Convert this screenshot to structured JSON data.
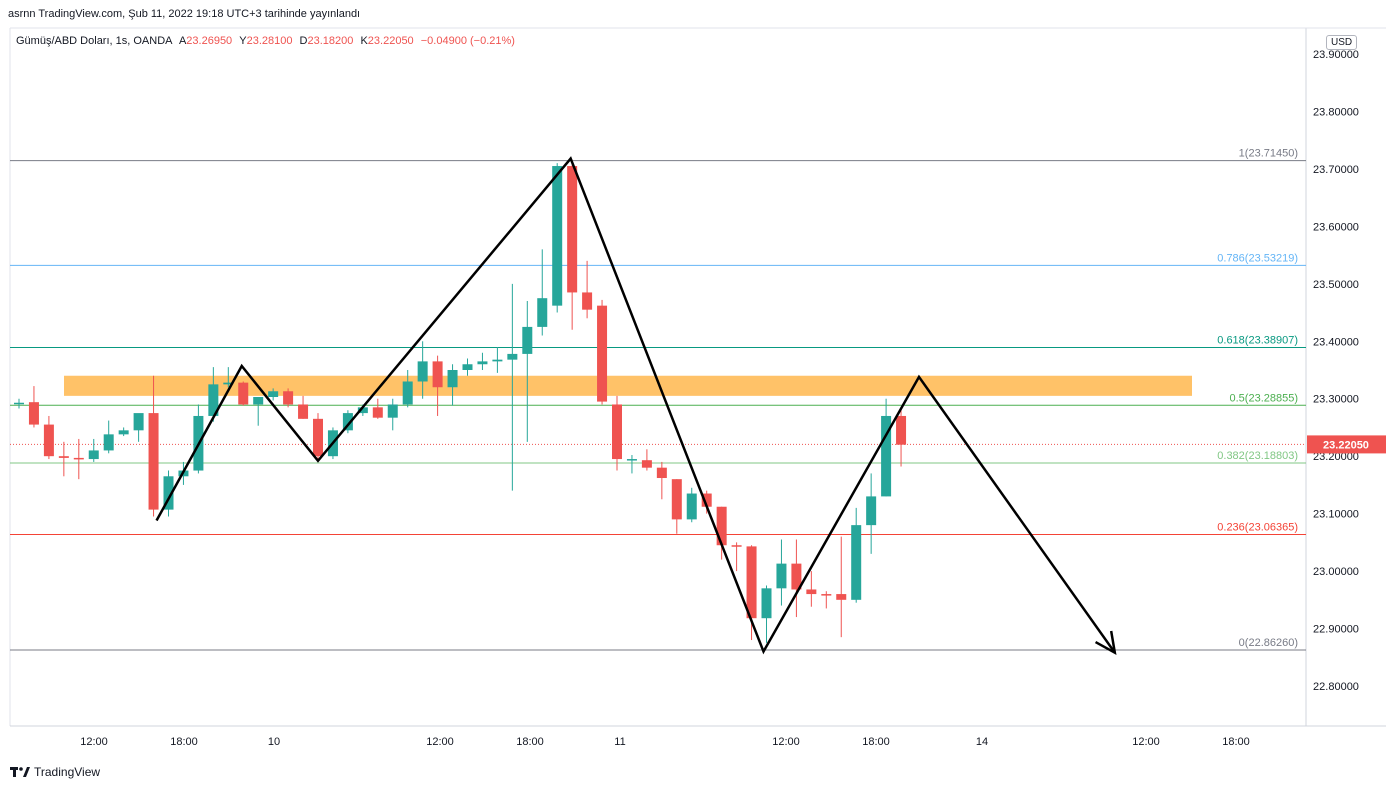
{
  "header": {
    "publisher": "asrnn TradingView.com, Şub 11, 2022 19:18 UTC+3 tarihinde yayınlandı"
  },
  "legend": {
    "symbol": "Gümüş/ABD Doları, 1s, OANDA",
    "open_label": "A",
    "open": "23.26950",
    "high_label": "Y",
    "high": "23.28100",
    "low_label": "D",
    "low": "23.18200",
    "close_label": "K",
    "close": "23.22050",
    "change": "−0.04900 (−0.21%)"
  },
  "currency_badge": "USD",
  "footer": {
    "brand": "TradingView"
  },
  "colors": {
    "up": "#26a69a",
    "down": "#ef5350",
    "zone": "#ffb74d",
    "price_line": "#ef5350"
  },
  "chart_data": {
    "type": "candlestick",
    "ylim": [
      22.74,
      23.93
    ],
    "y_ticks": [
      "23.90000",
      "23.80000",
      "23.70000",
      "23.60000",
      "23.50000",
      "23.40000",
      "23.30000",
      "23.20000",
      "23.10000",
      "23.00000",
      "22.90000",
      "22.80000"
    ],
    "x_ticks": [
      "12:00",
      "18:00",
      "10",
      "12:00",
      "18:00",
      "11",
      "12:00",
      "18:00",
      "14",
      "12:00",
      "18:00"
    ],
    "last_price": "23.22050",
    "fib_levels": [
      {
        "label": "1(23.71450)",
        "value": 23.7145,
        "color": "#787b86"
      },
      {
        "label": "0.786(23.53219)",
        "value": 23.53219,
        "color": "#64b5f6"
      },
      {
        "label": "0.618(23.38907)",
        "value": 23.38907,
        "color": "#089981"
      },
      {
        "label": "0.5(23.28855)",
        "value": 23.28855,
        "color": "#4caf50"
      },
      {
        "label": "0.382(23.18803)",
        "value": 23.18803,
        "color": "#81c784"
      },
      {
        "label": "0.236(23.06365)",
        "value": 23.06365,
        "color": "#f44336"
      },
      {
        "label": "0(22.86260)",
        "value": 22.8626,
        "color": "#787b86"
      }
    ],
    "resistance_zone": [
      23.305,
      23.34
    ],
    "candles": [
      {
        "o": 23.292,
        "h": 23.3,
        "l": 23.283,
        "c": 23.293
      },
      {
        "o": 23.294,
        "h": 23.322,
        "l": 23.25,
        "c": 23.255
      },
      {
        "o": 23.255,
        "h": 23.27,
        "l": 23.195,
        "c": 23.2
      },
      {
        "o": 23.2,
        "h": 23.225,
        "l": 23.165,
        "c": 23.197
      },
      {
        "o": 23.197,
        "h": 23.23,
        "l": 23.16,
        "c": 23.195
      },
      {
        "o": 23.195,
        "h": 23.23,
        "l": 23.19,
        "c": 23.21
      },
      {
        "o": 23.21,
        "h": 23.262,
        "l": 23.205,
        "c": 23.238
      },
      {
        "o": 23.238,
        "h": 23.25,
        "l": 23.235,
        "c": 23.245
      },
      {
        "o": 23.245,
        "h": 23.27,
        "l": 23.225,
        "c": 23.275
      },
      {
        "o": 23.275,
        "h": 23.34,
        "l": 23.095,
        "c": 23.107
      },
      {
        "o": 23.107,
        "h": 23.175,
        "l": 23.095,
        "c": 23.165
      },
      {
        "o": 23.165,
        "h": 23.19,
        "l": 23.15,
        "c": 23.175
      },
      {
        "o": 23.175,
        "h": 23.29,
        "l": 23.17,
        "c": 23.27
      },
      {
        "o": 23.27,
        "h": 23.355,
        "l": 23.26,
        "c": 23.325
      },
      {
        "o": 23.325,
        "h": 23.355,
        "l": 23.32,
        "c": 23.328
      },
      {
        "o": 23.328,
        "h": 23.33,
        "l": 23.288,
        "c": 23.29
      },
      {
        "o": 23.29,
        "h": 23.302,
        "l": 23.253,
        "c": 23.303
      },
      {
        "o": 23.303,
        "h": 23.318,
        "l": 23.297,
        "c": 23.313
      },
      {
        "o": 23.313,
        "h": 23.318,
        "l": 23.285,
        "c": 23.29
      },
      {
        "o": 23.29,
        "h": 23.305,
        "l": 23.265,
        "c": 23.265
      },
      {
        "o": 23.265,
        "h": 23.275,
        "l": 23.19,
        "c": 23.2
      },
      {
        "o": 23.2,
        "h": 23.25,
        "l": 23.195,
        "c": 23.245
      },
      {
        "o": 23.245,
        "h": 23.28,
        "l": 23.24,
        "c": 23.275
      },
      {
        "o": 23.275,
        "h": 23.29,
        "l": 23.27,
        "c": 23.285
      },
      {
        "o": 23.285,
        "h": 23.3,
        "l": 23.265,
        "c": 23.267
      },
      {
        "o": 23.267,
        "h": 23.3,
        "l": 23.245,
        "c": 23.29
      },
      {
        "o": 23.29,
        "h": 23.35,
        "l": 23.285,
        "c": 23.33
      },
      {
        "o": 23.33,
        "h": 23.4,
        "l": 23.3,
        "c": 23.365
      },
      {
        "o": 23.365,
        "h": 23.375,
        "l": 23.27,
        "c": 23.32
      },
      {
        "o": 23.32,
        "h": 23.36,
        "l": 23.288,
        "c": 23.35
      },
      {
        "o": 23.35,
        "h": 23.37,
        "l": 23.34,
        "c": 23.36
      },
      {
        "o": 23.36,
        "h": 23.38,
        "l": 23.35,
        "c": 23.365
      },
      {
        "o": 23.365,
        "h": 23.39,
        "l": 23.345,
        "c": 23.368
      },
      {
        "o": 23.368,
        "h": 23.5,
        "l": 23.14,
        "c": 23.378
      },
      {
        "o": 23.378,
        "h": 23.47,
        "l": 23.225,
        "c": 23.425
      },
      {
        "o": 23.425,
        "h": 23.56,
        "l": 23.41,
        "c": 23.475
      },
      {
        "o": 23.462,
        "h": 23.71,
        "l": 23.45,
        "c": 23.705
      },
      {
        "o": 23.705,
        "h": 23.716,
        "l": 23.42,
        "c": 23.485
      },
      {
        "o": 23.485,
        "h": 23.54,
        "l": 23.44,
        "c": 23.455
      },
      {
        "o": 23.462,
        "h": 23.472,
        "l": 23.29,
        "c": 23.295
      },
      {
        "o": 23.29,
        "h": 23.305,
        "l": 23.175,
        "c": 23.195
      },
      {
        "o": 23.195,
        "h": 23.202,
        "l": 23.17,
        "c": 23.195
      },
      {
        "o": 23.193,
        "h": 23.212,
        "l": 23.175,
        "c": 23.18
      },
      {
        "o": 23.18,
        "h": 23.19,
        "l": 23.125,
        "c": 23.162
      },
      {
        "o": 23.16,
        "h": 23.16,
        "l": 23.065,
        "c": 23.09
      },
      {
        "o": 23.09,
        "h": 23.145,
        "l": 23.085,
        "c": 23.135
      },
      {
        "o": 23.135,
        "h": 23.14,
        "l": 23.1,
        "c": 23.112
      },
      {
        "o": 23.112,
        "h": 23.112,
        "l": 23.02,
        "c": 23.045
      },
      {
        "o": 23.045,
        "h": 23.05,
        "l": 23.0,
        "c": 23.043
      },
      {
        "o": 23.043,
        "h": 23.045,
        "l": 22.88,
        "c": 22.918
      },
      {
        "o": 22.918,
        "h": 22.975,
        "l": 22.875,
        "c": 22.97
      },
      {
        "o": 22.97,
        "h": 23.055,
        "l": 22.94,
        "c": 23.013
      },
      {
        "o": 23.013,
        "h": 23.055,
        "l": 22.92,
        "c": 22.968
      },
      {
        "o": 22.968,
        "h": 23.0,
        "l": 22.938,
        "c": 22.96
      },
      {
        "o": 22.96,
        "h": 22.965,
        "l": 22.935,
        "c": 22.958
      },
      {
        "o": 22.96,
        "h": 23.06,
        "l": 22.885,
        "c": 22.95
      },
      {
        "o": 22.95,
        "h": 23.11,
        "l": 22.945,
        "c": 23.08
      },
      {
        "o": 23.08,
        "h": 23.17,
        "l": 23.03,
        "c": 23.13
      },
      {
        "o": 23.13,
        "h": 23.3,
        "l": 23.13,
        "c": 23.27
      },
      {
        "o": 23.27,
        "h": 23.282,
        "l": 23.182,
        "c": 23.22
      }
    ],
    "drawn_path": [
      {
        "i": 9.2,
        "v": 23.088
      },
      {
        "i": 14.9,
        "v": 23.357
      },
      {
        "i": 20.0,
        "v": 23.192
      },
      {
        "i": 36.9,
        "v": 23.718
      },
      {
        "i": 49.8,
        "v": 22.86
      },
      {
        "i": 60.2,
        "v": 23.338
      },
      {
        "i": 73.3,
        "v": 22.858
      }
    ]
  }
}
